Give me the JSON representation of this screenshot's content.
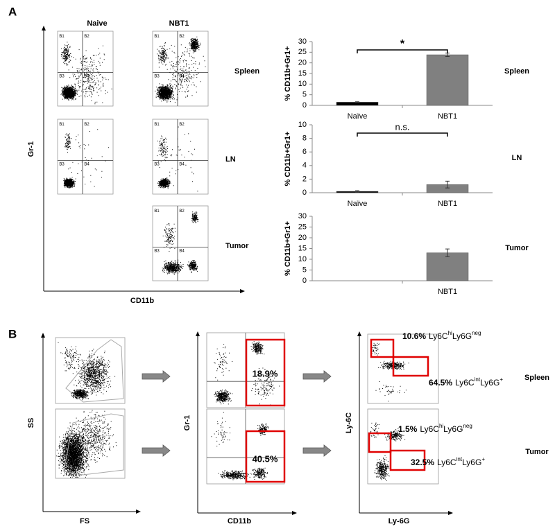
{
  "chart_data": [
    {
      "type": "bar",
      "y_label": "% CD11b+Gr1+",
      "label": "Spleen",
      "annotation": "*",
      "categories": [
        "Naïve",
        "NBT1"
      ],
      "values": [
        1.5,
        23.8
      ],
      "errors": [
        0.2,
        0.8
      ],
      "colors": [
        "#000000",
        "#808080"
      ],
      "ylim": [
        0,
        30
      ],
      "yticks": [
        0,
        5,
        10,
        15,
        20,
        25,
        30
      ]
    },
    {
      "type": "bar",
      "y_label": "% CD11b+Gr1+",
      "label": "LN",
      "annotation": "n.s.",
      "categories": [
        "Naïve",
        "NBT1"
      ],
      "values": [
        0.2,
        1.2
      ],
      "errors": [
        0.1,
        0.5
      ],
      "colors": [
        "#000000",
        "#808080"
      ],
      "ylim": [
        0,
        10
      ],
      "yticks": [
        0,
        2,
        4,
        6,
        8,
        10
      ]
    },
    {
      "type": "bar",
      "y_label": "% CD11b+Gr1+",
      "label": "Tumor",
      "categories": [
        null,
        "NBT1"
      ],
      "values": [
        null,
        13
      ],
      "errors": [
        null,
        1.8
      ],
      "colors": [
        "#000000",
        "#808080"
      ],
      "ylim": [
        0,
        30
      ],
      "yticks": [
        0,
        5,
        10,
        15,
        20,
        25,
        30
      ]
    }
  ],
  "panel_a": {
    "label": "A",
    "columns": [
      "Naive",
      "NBT1"
    ],
    "rows": [
      "Spleen",
      "LN",
      "Tumor"
    ],
    "y_axis": "Gr-1",
    "x_axis": "CD11b",
    "quadrants": [
      "B1",
      "B2",
      "B3",
      "B4"
    ]
  },
  "panel_b": {
    "label": "B",
    "scatter_axes": {
      "y": "SS",
      "x": "FS"
    },
    "gate_axes": {
      "y": "Gr-1",
      "x": "CD11b"
    },
    "subset_axes": {
      "y": "Ly-6C",
      "x": "Ly-6G"
    },
    "rows": [
      {
        "name": "Spleen",
        "gated": "18.9%",
        "subsets": [
          {
            "percent": "10.6%",
            "marker1": "Ly6C",
            "level1": "hi",
            "marker2": "Ly6G",
            "level2": "neg"
          },
          {
            "percent": "64.5%",
            "marker1": "Ly6C",
            "level1": "int",
            "marker2": "Ly6G",
            "level2": "+"
          }
        ]
      },
      {
        "name": "Tumor",
        "gated": "40.5%",
        "subsets": [
          {
            "percent": "1.5%",
            "marker1": "Ly6C",
            "level1": "hi",
            "marker2": "Ly6G",
            "level2": "neg"
          },
          {
            "percent": "32.5%",
            "marker1": "Ly6C",
            "level1": "int",
            "marker2": "Ly6G",
            "level2": "+"
          }
        ]
      }
    ]
  }
}
